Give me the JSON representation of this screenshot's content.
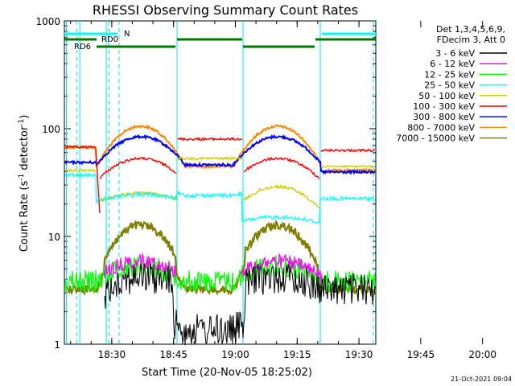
{
  "chart_data": {
    "type": "line",
    "title": "RHESSI Observing Summary Count Rates",
    "xlabel": "Start Time (20-Nov-05 18:25:02)",
    "ylabel_main": "Count Rate (s",
    "ylabel_sup": "-1",
    "ylabel_mid": " detector",
    "ylabel_sup2": "-1",
    "ylabel_end": ")",
    "yscale": "log",
    "ylim": [
      1,
      1000
    ],
    "xlim_minutes": [
      18.5,
      97
    ],
    "y_ticks": [
      {
        "v": 1,
        "label": "1"
      },
      {
        "v": 10,
        "label": "10"
      },
      {
        "v": 100,
        "label": "100"
      },
      {
        "v": 1000,
        "label": "1000"
      }
    ],
    "x_ticks": [
      {
        "v": 30,
        "label": "18:30"
      },
      {
        "v": 45,
        "label": "18:45"
      },
      {
        "v": 60,
        "label": "19:00"
      },
      {
        "v": 75,
        "label": "19:15"
      },
      {
        "v": 90,
        "label": "19:30"
      },
      {
        "v": 105,
        "label": "19:45"
      },
      {
        "v": 120,
        "label": "20:00"
      }
    ],
    "legend_header": [
      "Det 1,3,4,5,6,9,",
      "FDecim 3, Att 0"
    ],
    "series": [
      {
        "name": "3 - 6 keV",
        "color": "#000000"
      },
      {
        "name": "6 - 12 keV",
        "color": "#ff00ff"
      },
      {
        "name": "12 - 25 keV",
        "color": "#00ff00"
      },
      {
        "name": "25 - 50 keV",
        "color": "#00ffff"
      },
      {
        "name": "50 - 100 keV",
        "color": "#cccc00"
      },
      {
        "name": "100 - 300 keV",
        "color": "#ff0000"
      },
      {
        "name": "300 - 800 keV",
        "color": "#0000ff"
      },
      {
        "name": "800 - 7000 keV",
        "color": "#ff8800"
      },
      {
        "name": "7000 - 15000 keV",
        "color": "#808000"
      }
    ],
    "flag_labels": {
      "n": "N",
      "rd0": "RD0",
      "rd6": "RD6"
    },
    "timestamp": "21-Oct-2021 09:04"
  }
}
